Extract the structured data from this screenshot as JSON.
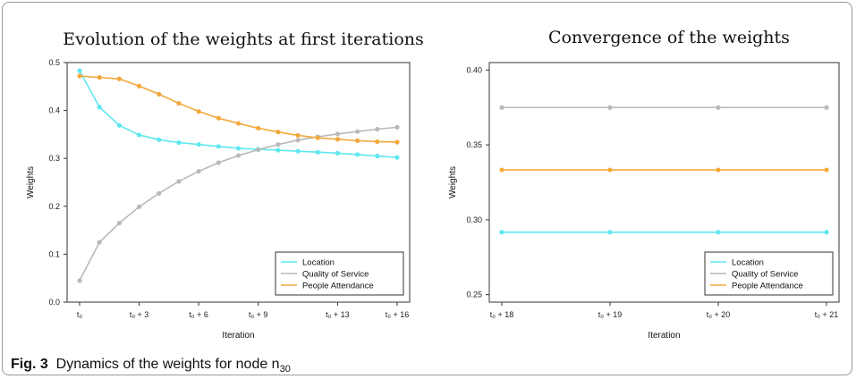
{
  "caption": {
    "label": "Fig. 3",
    "text": "Dynamics of the weights for node n",
    "subscript": "30"
  },
  "colors": {
    "Location": "#5fe8ef",
    "Quality of Service": "#b9b9b9",
    "People Attendance": "#f2a93b"
  },
  "chart_data": [
    {
      "type": "line",
      "title": "Evolution of the weights at first iterations",
      "xlabel": "Iteration",
      "ylabel": "Weights",
      "ylim": [
        0,
        0.5
      ],
      "yticks": [
        "0.0",
        "0.1",
        "0.2",
        "0.3",
        "0.4",
        "0.5"
      ],
      "x": [
        0,
        1,
        2,
        3,
        4,
        5,
        6,
        7,
        8,
        9,
        10,
        11,
        12,
        13,
        14,
        15,
        16
      ],
      "xticks": [
        {
          "x": 0,
          "label": "t₀"
        },
        {
          "x": 3,
          "label": "t₀ + 3"
        },
        {
          "x": 6,
          "label": "t₀ + 6"
        },
        {
          "x": 9,
          "label": "t₀ + 9"
        },
        {
          "x": 13,
          "label": "t₀ + 13"
        },
        {
          "x": 16,
          "label": "t₀ + 16"
        }
      ],
      "legend_position": "bottom-right",
      "series": [
        {
          "name": "Location",
          "values": [
            0.483,
            0.407,
            0.369,
            0.349,
            0.339,
            0.333,
            0.329,
            0.325,
            0.321,
            0.319,
            0.317,
            0.315,
            0.313,
            0.311,
            0.308,
            0.305,
            0.302
          ]
        },
        {
          "name": "Quality of Service",
          "values": [
            0.045,
            0.125,
            0.165,
            0.199,
            0.227,
            0.252,
            0.273,
            0.291,
            0.306,
            0.318,
            0.329,
            0.338,
            0.345,
            0.351,
            0.356,
            0.361,
            0.365
          ]
        },
        {
          "name": "People Attendance",
          "values": [
            0.472,
            0.469,
            0.466,
            0.451,
            0.434,
            0.415,
            0.398,
            0.384,
            0.373,
            0.363,
            0.355,
            0.348,
            0.343,
            0.34,
            0.337,
            0.335,
            0.334
          ]
        }
      ]
    },
    {
      "type": "line",
      "title": "Convergence of the weights",
      "xlabel": "Iteration",
      "ylabel": "Weights",
      "ylim": [
        0.245,
        0.405
      ],
      "yticks": [
        "0.25",
        "0.30",
        "0.35",
        "0.40"
      ],
      "x": [
        18,
        19,
        20,
        21
      ],
      "xticks": [
        {
          "x": 18,
          "label": "t₀ + 18"
        },
        {
          "x": 19,
          "label": "t₀ + 19"
        },
        {
          "x": 20,
          "label": "t₀ + 20"
        },
        {
          "x": 21,
          "label": "t₀ + 21"
        }
      ],
      "legend_position": "bottom-right",
      "series": [
        {
          "name": "Location",
          "values": [
            0.2917,
            0.2917,
            0.2917,
            0.2917
          ]
        },
        {
          "name": "Quality of Service",
          "values": [
            0.375,
            0.375,
            0.375,
            0.375
          ]
        },
        {
          "name": "People Attendance",
          "values": [
            0.3333,
            0.3333,
            0.3333,
            0.3333
          ]
        }
      ]
    }
  ]
}
